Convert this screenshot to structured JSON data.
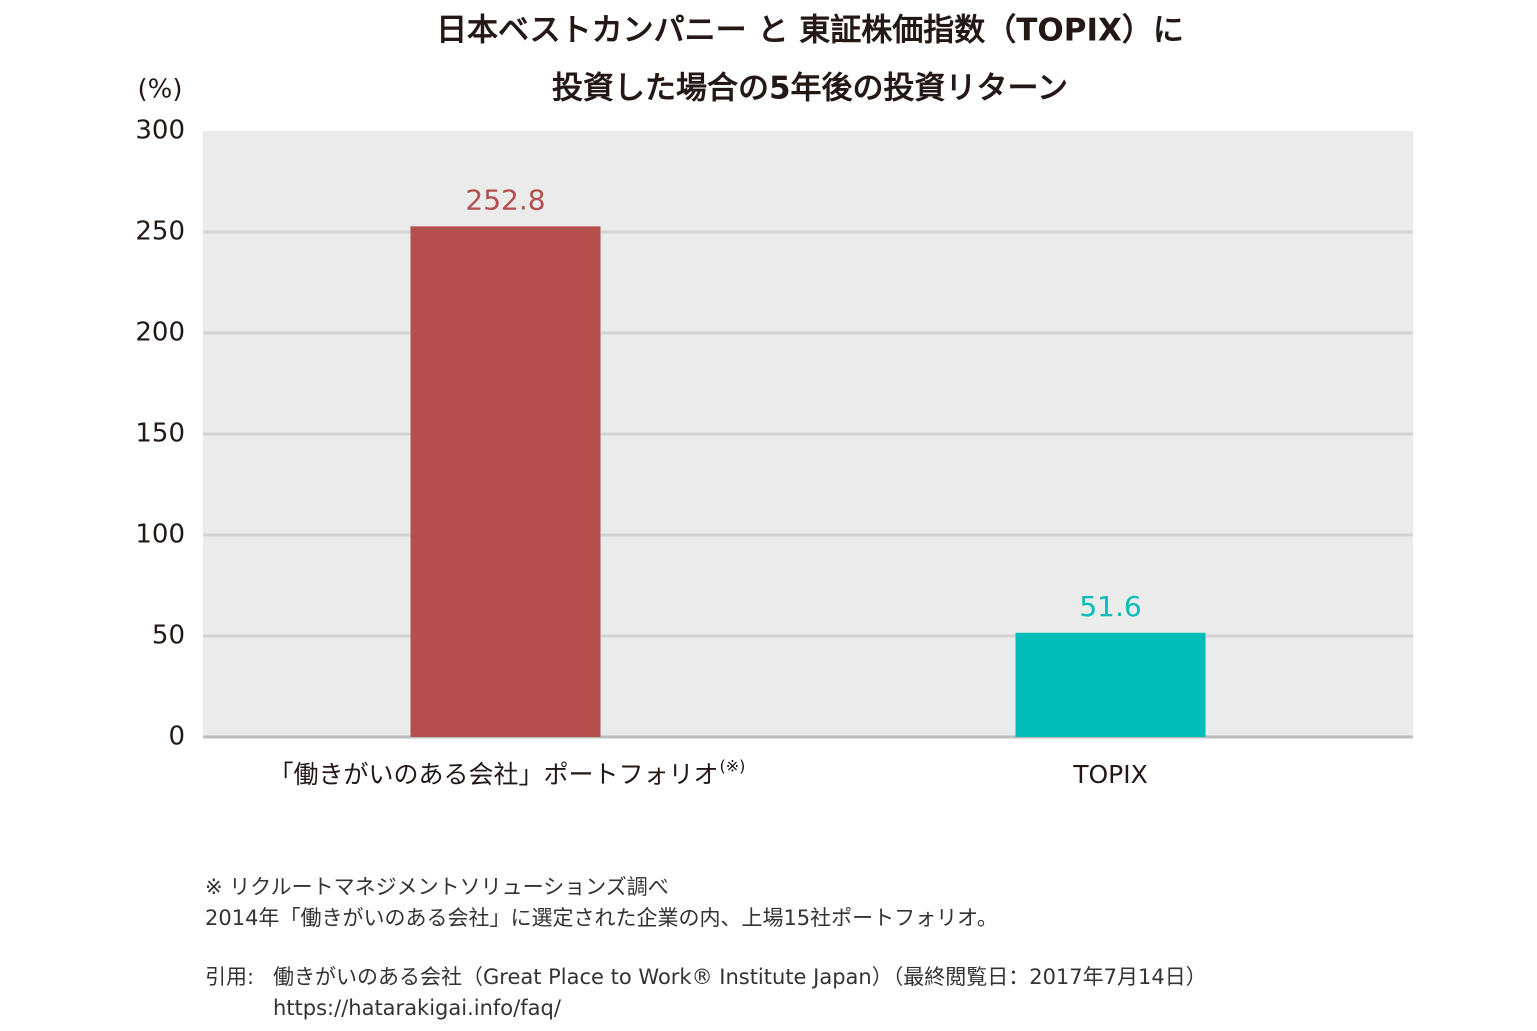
{
  "chart_data": {
    "type": "bar",
    "title": [
      "日本ベストカンパニー と 東証株価指数（TOPIX）に",
      "投資した場合の5年後の投資リターン"
    ],
    "y_label": "(%)",
    "categories": [
      "「働きがいのある会社」ポートフォリオ",
      "TOPIX"
    ],
    "category_marks": [
      "(※)",
      null
    ],
    "values": [
      252.8,
      51.6
    ],
    "colors": [
      "#b44f4e",
      "#00bdb9"
    ],
    "ylim": [
      0,
      300
    ],
    "yticks": [
      0,
      50,
      100,
      150,
      200,
      250,
      300
    ],
    "grid": true,
    "notes": [
      "※ リクルートマネジメントソリューションズ調べ",
      "2014年「働きがいのある会社」に選定された企業の内、上場15社ポートフォリオ。"
    ],
    "source_label": "引用:",
    "source": [
      "働きがいのある会社（Great Place to Work® Institute Japan）（最終閲覧日：2017年7月14日）",
      "https://hatarakigai.info/faq/"
    ]
  }
}
